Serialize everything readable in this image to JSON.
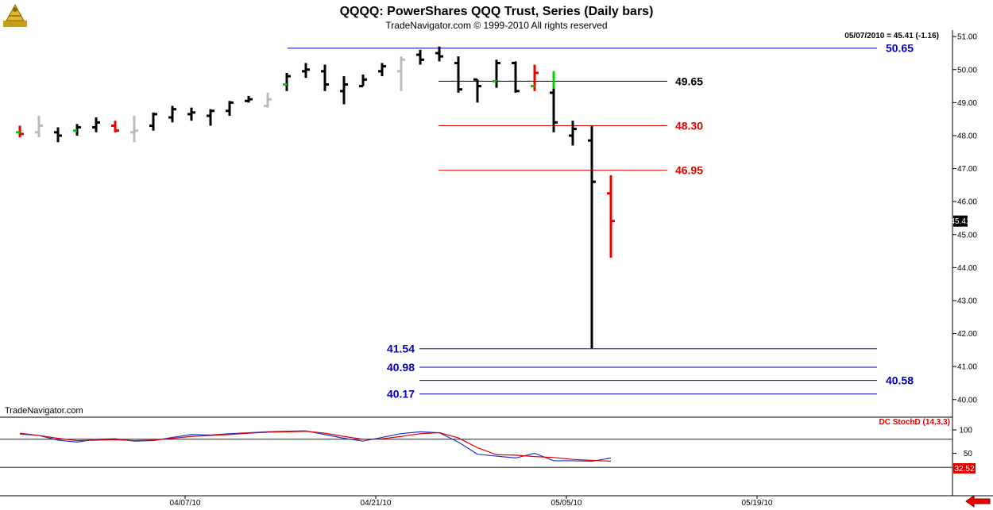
{
  "header": {
    "title": "QQQQ:  PowerShares QQQ Trust, Series  (Daily bars)",
    "subtitle": "TradeNavigator.com © 1999-2010 All rights reserved",
    "last_bar_info": "05/07/2010 = 45.41 (-1.16)",
    "watermark": "TradeNavigator.com"
  },
  "colors": {
    "up_bar": "#000000",
    "gray_bar": "#bbbbbb",
    "green_bar": "#00cc00",
    "red_bar": "#ee0000",
    "blue_line": "#0000bb",
    "red_line": "#dd0000",
    "stoch_k": "#2233cc",
    "stoch_d": "#dd0000",
    "price_tag_bg": "#000000"
  },
  "chart_data": {
    "type": "ohlc",
    "x_tick_labels": [
      "04/07/10",
      "04/21/10",
      "05/05/10",
      "05/19/10"
    ],
    "x_tick_bar_index": [
      9,
      19,
      29,
      39
    ],
    "y_ticks": [
      40.0,
      41.0,
      42.0,
      43.0,
      44.0,
      45.0,
      46.0,
      47.0,
      48.0,
      49.0,
      50.0,
      51.0
    ],
    "ylim": [
      39.85,
      51.1
    ],
    "current_price_label": "45.41",
    "bars": [
      {
        "o": 48.1,
        "h": 48.3,
        "l": 47.95,
        "c": 48.05,
        "color": "red",
        "green_open": true
      },
      {
        "o": 48.1,
        "h": 48.6,
        "l": 47.95,
        "c": 48.3,
        "color": "gray"
      },
      {
        "o": 48.1,
        "h": 48.25,
        "l": 47.8,
        "c": 48.0,
        "color": "black"
      },
      {
        "o": 48.15,
        "h": 48.35,
        "l": 48.0,
        "c": 48.25,
        "color": "black",
        "green_open": true
      },
      {
        "o": 48.25,
        "h": 48.55,
        "l": 48.1,
        "c": 48.4,
        "color": "black"
      },
      {
        "o": 48.3,
        "h": 48.45,
        "l": 48.1,
        "c": 48.15,
        "color": "red"
      },
      {
        "o": 48.1,
        "h": 48.6,
        "l": 47.8,
        "c": 48.15,
        "color": "gray"
      },
      {
        "o": 48.3,
        "h": 48.7,
        "l": 48.15,
        "c": 48.65,
        "color": "black"
      },
      {
        "o": 48.55,
        "h": 48.9,
        "l": 48.4,
        "c": 48.8,
        "color": "black"
      },
      {
        "o": 48.65,
        "h": 48.85,
        "l": 48.45,
        "c": 48.7,
        "color": "black"
      },
      {
        "o": 48.6,
        "h": 48.8,
        "l": 48.3,
        "c": 48.75,
        "color": "black"
      },
      {
        "o": 48.75,
        "h": 49.05,
        "l": 48.6,
        "c": 49.0,
        "color": "black"
      },
      {
        "o": 49.05,
        "h": 49.2,
        "l": 49.0,
        "c": 49.1,
        "color": "black"
      },
      {
        "o": 48.9,
        "h": 49.3,
        "l": 48.85,
        "c": 49.1,
        "color": "gray"
      },
      {
        "o": 49.55,
        "h": 49.9,
        "l": 49.35,
        "c": 49.8,
        "color": "black",
        "green_open": true
      },
      {
        "o": 49.95,
        "h": 50.2,
        "l": 49.75,
        "c": 50.0,
        "color": "black"
      },
      {
        "o": 49.95,
        "h": 50.15,
        "l": 49.35,
        "c": 49.55,
        "color": "black"
      },
      {
        "o": 49.35,
        "h": 49.8,
        "l": 48.95,
        "c": 49.55,
        "color": "black"
      },
      {
        "o": 49.5,
        "h": 49.85,
        "l": 49.5,
        "c": 49.7,
        "color": "black"
      },
      {
        "o": 49.95,
        "h": 50.2,
        "l": 49.8,
        "c": 50.1,
        "color": "black"
      },
      {
        "o": 49.95,
        "h": 50.4,
        "l": 49.35,
        "c": 50.3,
        "color": "gray"
      },
      {
        "o": 50.45,
        "h": 50.6,
        "l": 50.15,
        "c": 50.3,
        "color": "black"
      },
      {
        "o": 50.5,
        "h": 50.7,
        "l": 50.25,
        "c": 50.4,
        "color": "black"
      },
      {
        "o": 50.2,
        "h": 50.4,
        "l": 49.3,
        "c": 49.4,
        "color": "black"
      },
      {
        "o": 49.7,
        "h": 49.7,
        "l": 49.0,
        "c": 49.5,
        "color": "black"
      },
      {
        "o": 49.65,
        "h": 50.3,
        "l": 49.45,
        "c": 50.2,
        "color": "black",
        "green_open": true
      },
      {
        "o": 50.2,
        "h": 50.25,
        "l": 49.3,
        "c": 49.35,
        "color": "black"
      },
      {
        "o": 49.5,
        "h": 50.15,
        "l": 49.35,
        "c": 49.9,
        "color": "red",
        "green_open": true
      },
      {
        "o": 49.3,
        "h": 49.95,
        "l": 48.1,
        "c": 48.4,
        "color": "black",
        "green_high": true
      },
      {
        "o": 48.0,
        "h": 48.45,
        "l": 47.7,
        "c": 48.2,
        "color": "black"
      },
      {
        "o": 47.85,
        "h": 48.3,
        "l": 41.55,
        "c": 46.6,
        "color": "black"
      },
      {
        "o": 46.25,
        "h": 46.8,
        "l": 44.3,
        "c": 45.41,
        "color": "red"
      }
    ],
    "annotations": [
      {
        "label": "50.65",
        "value": 50.65,
        "color": "blue"
      },
      {
        "label": "49.65",
        "value": 49.65,
        "color": "black"
      },
      {
        "label": "48.30",
        "value": 48.3,
        "color": "red"
      },
      {
        "label": "46.95",
        "value": 46.95,
        "color": "red"
      },
      {
        "label": "41.54",
        "value": 41.54,
        "color": "blue"
      },
      {
        "label": "40.98",
        "value": 40.98,
        "color": "blue"
      },
      {
        "label": "40.58",
        "value": 40.58,
        "color": "blue"
      },
      {
        "label": "40.17",
        "value": 40.17,
        "color": "blue"
      }
    ],
    "indicator": {
      "name": "DC StochD (14,3,3)",
      "y_ticks": [
        "100",
        "50"
      ],
      "ylim": [
        0,
        100
      ],
      "reference_levels": [
        80,
        20
      ],
      "last_values": [
        "32.52"
      ],
      "series": [
        {
          "color": "blue",
          "values": [
            91,
            88,
            78,
            74,
            80,
            81,
            76,
            77,
            84,
            90,
            89,
            92,
            94,
            96,
            97,
            98,
            90,
            82,
            76,
            84,
            92,
            96,
            94,
            74,
            48,
            44,
            40,
            50,
            34,
            34,
            33,
            40
          ]
        },
        {
          "color": "red",
          "values": [
            93,
            88,
            82,
            77,
            78,
            79,
            77,
            78,
            82,
            86,
            88,
            90,
            93,
            95,
            96,
            97,
            93,
            86,
            80,
            81,
            86,
            92,
            94,
            83,
            62,
            47,
            46,
            43,
            41,
            37,
            35,
            33
          ]
        }
      ]
    }
  }
}
